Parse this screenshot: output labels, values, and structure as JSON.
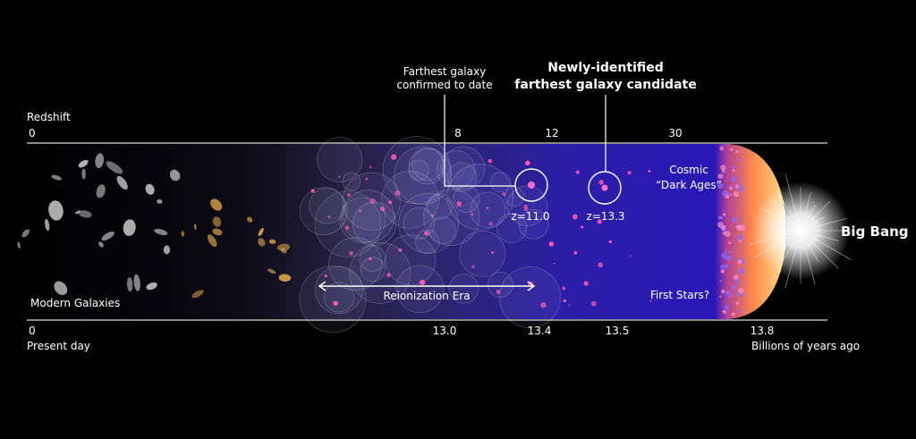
{
  "redshift_axis": {
    "label": "Redshift",
    "ticks": [
      "0",
      "8",
      "12",
      "30"
    ]
  },
  "time_axis": {
    "ticks": [
      "0",
      "13.0",
      "13.4",
      "13.5",
      "13.8"
    ],
    "start_label": "Present day",
    "end_label": "Billions of years ago"
  },
  "callouts": {
    "confirmed": {
      "label": [
        "Farthest galaxy",
        "confirmed to date"
      ],
      "redshift": "z=11.0"
    },
    "candidate": {
      "label": [
        "Newly-identified",
        "farthest galaxy candidate"
      ],
      "redshift": "z=13.3"
    }
  },
  "regions": {
    "modern": "Modern Galaxies",
    "reionization": "Reionization Era",
    "dark_ages": [
      "Cosmic",
      "“Dark Ages”"
    ],
    "first_stars": "First Stars?",
    "big_bang": "Big Bang"
  }
}
